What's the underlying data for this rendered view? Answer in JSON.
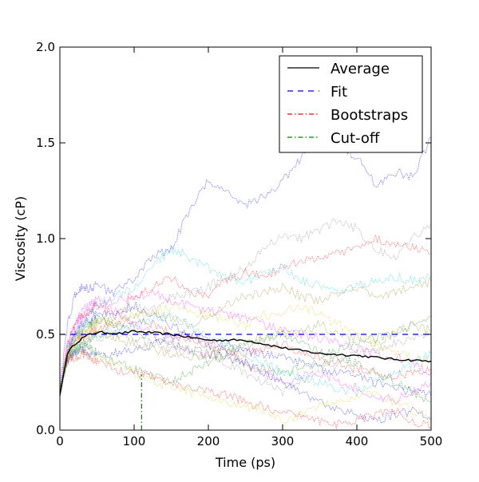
{
  "chart_data": {
    "type": "line",
    "title": "",
    "xlabel": "Time (ps)",
    "ylabel": "Viscosity (cP)",
    "xlim": [
      0,
      500
    ],
    "ylim": [
      0,
      2.0
    ],
    "x_ticks": [
      "0",
      "100",
      "200",
      "300",
      "400",
      "500"
    ],
    "y_ticks": [
      "0.0",
      "0.5",
      "1.0",
      "1.5",
      "2.0"
    ],
    "grid": false,
    "legend_position": "top-right",
    "legend": [
      {
        "label": "Average",
        "color": "#000000",
        "style": "solid"
      },
      {
        "label": "Fit",
        "color": "#0000ff",
        "style": "dashed"
      },
      {
        "label": "Bootstraps",
        "color": "#ff0000",
        "style": "dashdot"
      },
      {
        "label": "Cut-off",
        "color": "#008000",
        "style": "dashdot"
      }
    ],
    "average": {
      "x": [
        0,
        10,
        20,
        30,
        40,
        50,
        60,
        80,
        100,
        120,
        150,
        200,
        250,
        300,
        350,
        400,
        450,
        500
      ],
      "y": [
        0.18,
        0.4,
        0.45,
        0.48,
        0.5,
        0.51,
        0.51,
        0.505,
        0.515,
        0.51,
        0.5,
        0.47,
        0.47,
        0.43,
        0.4,
        0.39,
        0.37,
        0.36
      ]
    },
    "fit": {
      "x": [
        0,
        500
      ],
      "y": [
        0.5,
        0.5
      ]
    },
    "fit_color": "#0000ff",
    "cutoff": {
      "x": 110,
      "y": [
        0,
        0.29
      ]
    },
    "bootstrap_x": [
      0,
      10,
      20,
      30,
      40,
      50,
      75,
      100,
      125,
      150,
      175,
      200,
      225,
      250,
      275,
      300,
      325,
      350,
      375,
      400,
      425,
      450,
      475,
      500
    ],
    "bootstraps": [
      {
        "color": "#0000ff",
        "y": [
          0.2,
          0.55,
          0.7,
          0.75,
          0.74,
          0.75,
          0.72,
          0.8,
          0.9,
          0.95,
          1.15,
          1.3,
          1.25,
          1.17,
          1.22,
          1.3,
          1.42,
          1.52,
          1.5,
          1.42,
          1.28,
          1.35,
          1.32,
          1.53
        ]
      },
      {
        "color": "#808080",
        "y": [
          0.2,
          0.4,
          0.48,
          0.5,
          0.52,
          0.55,
          0.6,
          0.65,
          0.62,
          0.7,
          0.72,
          0.75,
          0.8,
          0.85,
          0.95,
          1.02,
          1.0,
          1.05,
          1.1,
          1.05,
          0.95,
          0.9,
          1.0,
          1.08
        ]
      },
      {
        "color": "#ff0000",
        "y": [
          0.2,
          0.45,
          0.55,
          0.6,
          0.62,
          0.65,
          0.6,
          0.7,
          0.75,
          0.8,
          0.72,
          0.7,
          0.78,
          0.82,
          0.8,
          0.85,
          0.88,
          0.9,
          0.92,
          0.95,
          1.0,
          0.98,
          0.95,
          0.92
        ]
      },
      {
        "color": "#00cccc",
        "y": [
          0.2,
          0.42,
          0.5,
          0.55,
          0.6,
          0.65,
          0.7,
          0.75,
          0.85,
          0.95,
          0.9,
          0.85,
          0.8,
          0.78,
          0.82,
          0.85,
          0.78,
          0.75,
          0.72,
          0.75,
          0.78,
          0.8,
          0.78,
          0.8
        ]
      },
      {
        "color": "#808000",
        "y": [
          0.2,
          0.4,
          0.48,
          0.52,
          0.55,
          0.58,
          0.55,
          0.6,
          0.62,
          0.58,
          0.55,
          0.6,
          0.65,
          0.7,
          0.72,
          0.75,
          0.7,
          0.68,
          0.72,
          0.75,
          0.7,
          0.72,
          0.75,
          0.78
        ]
      },
      {
        "color": "#ff00ff",
        "y": [
          0.2,
          0.45,
          0.55,
          0.62,
          0.65,
          0.68,
          0.62,
          0.55,
          0.5,
          0.45,
          0.42,
          0.4,
          0.38,
          0.35,
          0.3,
          0.25,
          0.28,
          0.3,
          0.26,
          0.22,
          0.18,
          0.15,
          0.2,
          0.25
        ]
      },
      {
        "color": "#008000",
        "y": [
          0.2,
          0.38,
          0.42,
          0.45,
          0.44,
          0.4,
          0.35,
          0.32,
          0.28,
          0.25,
          0.3,
          0.35,
          0.4,
          0.45,
          0.48,
          0.5,
          0.45,
          0.4,
          0.42,
          0.45,
          0.48,
          0.5,
          0.55,
          0.6
        ]
      },
      {
        "color": "#0000ff",
        "y": [
          0.2,
          0.4,
          0.5,
          0.55,
          0.58,
          0.6,
          0.62,
          0.65,
          0.6,
          0.55,
          0.5,
          0.45,
          0.4,
          0.35,
          0.3,
          0.25,
          0.2,
          0.15,
          0.1,
          0.08,
          0.05,
          0.08,
          0.1,
          0.05
        ]
      },
      {
        "color": "#cccc00",
        "y": [
          0.2,
          0.35,
          0.4,
          0.42,
          0.4,
          0.38,
          0.35,
          0.3,
          0.25,
          0.22,
          0.2,
          0.18,
          0.15,
          0.12,
          0.1,
          0.05,
          0.08,
          0.12,
          0.15,
          0.18,
          0.2,
          0.15,
          0.1,
          0.05
        ]
      },
      {
        "color": "#ff0000",
        "y": [
          0.2,
          0.38,
          0.45,
          0.48,
          0.5,
          0.52,
          0.55,
          0.58,
          0.55,
          0.5,
          0.48,
          0.45,
          0.42,
          0.4,
          0.42,
          0.45,
          0.4,
          0.38,
          0.35,
          0.32,
          0.3,
          0.28,
          0.3,
          0.32
        ]
      },
      {
        "color": "#808080",
        "y": [
          0.2,
          0.36,
          0.4,
          0.42,
          0.45,
          0.48,
          0.5,
          0.48,
          0.45,
          0.42,
          0.4,
          0.38,
          0.35,
          0.3,
          0.25,
          0.2,
          0.25,
          0.3,
          0.35,
          0.4,
          0.42,
          0.45,
          0.48,
          0.5
        ]
      },
      {
        "color": "#00cccc",
        "y": [
          0.2,
          0.38,
          0.42,
          0.45,
          0.48,
          0.5,
          0.52,
          0.55,
          0.58,
          0.6,
          0.55,
          0.5,
          0.45,
          0.4,
          0.35,
          0.3,
          0.28,
          0.25,
          0.22,
          0.2,
          0.25,
          0.3,
          0.35,
          0.4
        ]
      },
      {
        "color": "#ff00ff",
        "y": [
          0.2,
          0.42,
          0.52,
          0.58,
          0.62,
          0.65,
          0.68,
          0.7,
          0.72,
          0.68,
          0.65,
          0.62,
          0.6,
          0.58,
          0.55,
          0.52,
          0.5,
          0.48,
          0.45,
          0.42,
          0.4,
          0.38,
          0.35,
          0.3
        ]
      },
      {
        "color": "#008000",
        "y": [
          0.2,
          0.4,
          0.48,
          0.52,
          0.55,
          0.58,
          0.55,
          0.52,
          0.48,
          0.45,
          0.42,
          0.4,
          0.38,
          0.35,
          0.32,
          0.3,
          0.32,
          0.35,
          0.38,
          0.35,
          0.3,
          0.25,
          0.2,
          0.15
        ]
      },
      {
        "color": "#cccc00",
        "y": [
          0.2,
          0.4,
          0.45,
          0.5,
          0.52,
          0.55,
          0.58,
          0.6,
          0.62,
          0.65,
          0.62,
          0.6,
          0.58,
          0.55,
          0.6,
          0.62,
          0.65,
          0.6,
          0.55,
          0.5,
          0.45,
          0.4,
          0.38,
          0.35
        ]
      },
      {
        "color": "#0000ff",
        "y": [
          0.2,
          0.36,
          0.4,
          0.42,
          0.4,
          0.38,
          0.4,
          0.42,
          0.45,
          0.48,
          0.5,
          0.48,
          0.45,
          0.42,
          0.4,
          0.38,
          0.35,
          0.32,
          0.3,
          0.28,
          0.25,
          0.22,
          0.2,
          0.18
        ]
      },
      {
        "color": "#ff0000",
        "y": [
          0.2,
          0.36,
          0.38,
          0.4,
          0.38,
          0.35,
          0.32,
          0.3,
          0.28,
          0.25,
          0.22,
          0.2,
          0.18,
          0.15,
          0.12,
          0.1,
          0.08,
          0.05,
          0.03,
          0.05,
          0.08,
          0.1,
          0.05,
          0.02
        ]
      },
      {
        "color": "#808000",
        "y": [
          0.2,
          0.38,
          0.42,
          0.45,
          0.48,
          0.5,
          0.48,
          0.45,
          0.42,
          0.4,
          0.38,
          0.4,
          0.42,
          0.45,
          0.48,
          0.5,
          0.52,
          0.55,
          0.5,
          0.48,
          0.45,
          0.5,
          0.55,
          0.52
        ]
      }
    ]
  }
}
